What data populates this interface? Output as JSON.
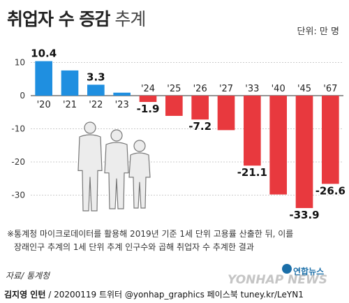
{
  "title_bold": "취업자 수 증감",
  "title_light": "추계",
  "unit_label": "단위: 만 명",
  "footnote_line1": "※통계청 마이크로데이터를 활용해 2019년 기준 1세 단위 고용률 산출한 뒤, 이를",
  "footnote_line2": "장래인구 추계의 1세 단위 추계 인구수와 곱해 취업자 수 추계한 결과",
  "source": "자료/ 통계청",
  "credit_name": "김지영 인턴",
  "credit_rest": " / 20200119 트위터 @yonhap_graphics  페이스북 tuney.kr/LeYN1",
  "logo_top": "연합뉴스",
  "logo_main": "YONHAP NEWS",
  "colors": {
    "positive": "#1f8fe0",
    "negative": "#e8393e",
    "axis": "#555555",
    "grid": "#bbbbbb"
  },
  "chart_data": {
    "type": "bar",
    "categories": [
      "'20",
      "'21",
      "'22",
      "'23",
      "'24",
      "'25",
      "'26",
      "'27",
      "'33",
      "'40",
      "'45",
      "'67"
    ],
    "values": [
      10.4,
      7.6,
      3.3,
      0.9,
      -1.9,
      -6.1,
      -7.2,
      -10.4,
      -21.1,
      -29.8,
      -33.9,
      -26.6
    ],
    "data_labels": {
      "0": "10.4",
      "2": "3.3",
      "4": "-1.9",
      "6": "-7.2",
      "8": "-21.1",
      "10": "-33.9",
      "11": "-26.6"
    },
    "y_ticks": [
      10,
      0,
      -10,
      -20,
      -30
    ],
    "y_tick_labels": [
      "10",
      "0",
      "-10",
      "-20",
      "-30"
    ],
    "ylim": [
      -36,
      13
    ],
    "grid": true
  }
}
